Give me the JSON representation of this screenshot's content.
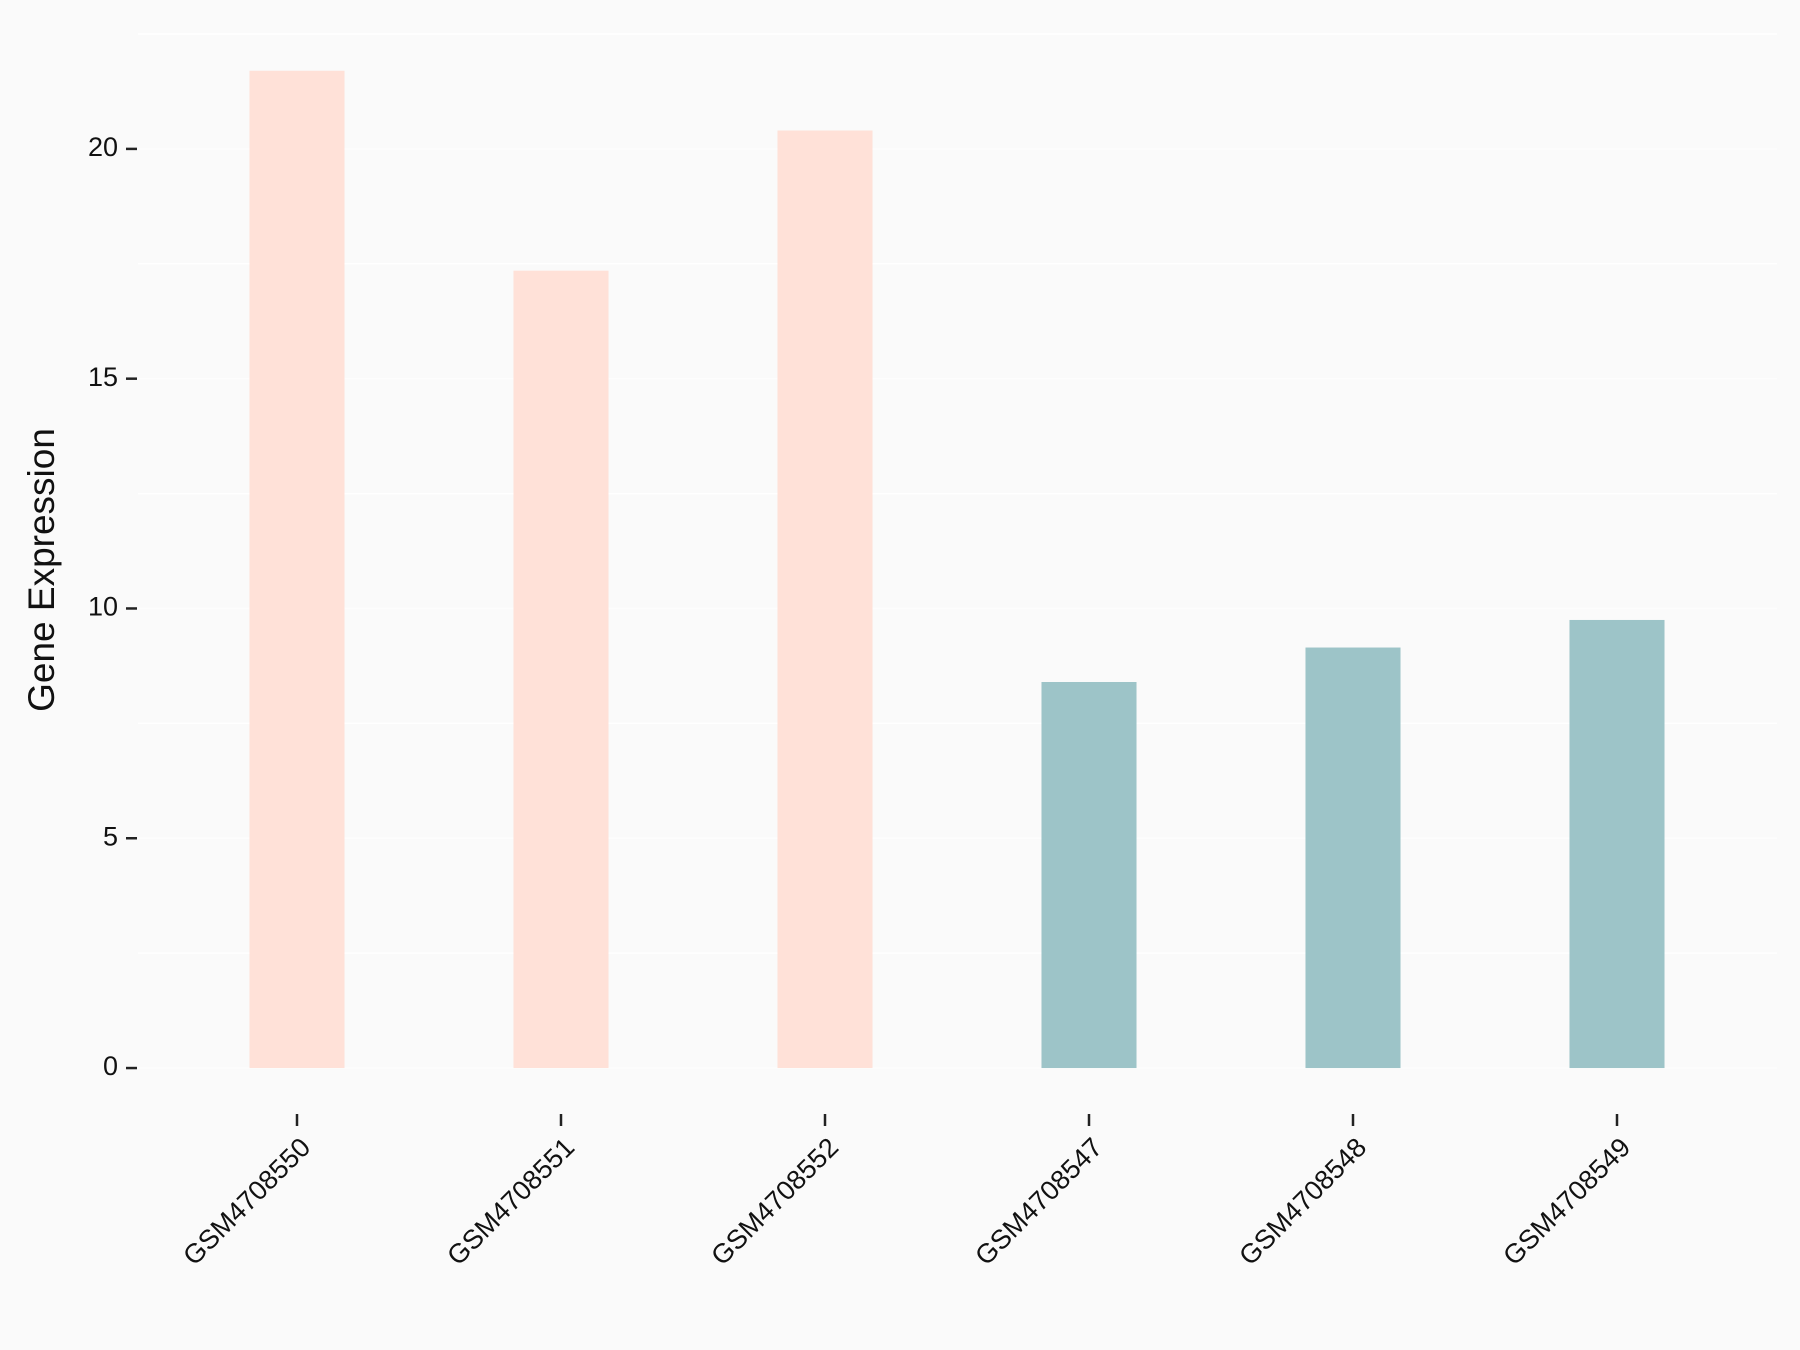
{
  "chart_data": {
    "type": "bar",
    "y_label": "Gene Expression",
    "categories": [
      "GSM4708550",
      "GSM4708551",
      "GSM4708552",
      "GSM4708547",
      "GSM4708548",
      "GSM4708549"
    ],
    "values": [
      21.7,
      17.35,
      20.4,
      8.4,
      9.15,
      9.75
    ],
    "colors": [
      "#ffe1d8",
      "#ffe1d8",
      "#ffe1d8",
      "#9dc4c8",
      "#9dc4c8",
      "#9dc4c8"
    ],
    "ylim": [
      -1,
      22.5
    ],
    "yticks": [
      0,
      5,
      10,
      15,
      20
    ],
    "grid": true,
    "ygrid": [
      2.5,
      7.5,
      12.5,
      17.5,
      22.5
    ]
  }
}
